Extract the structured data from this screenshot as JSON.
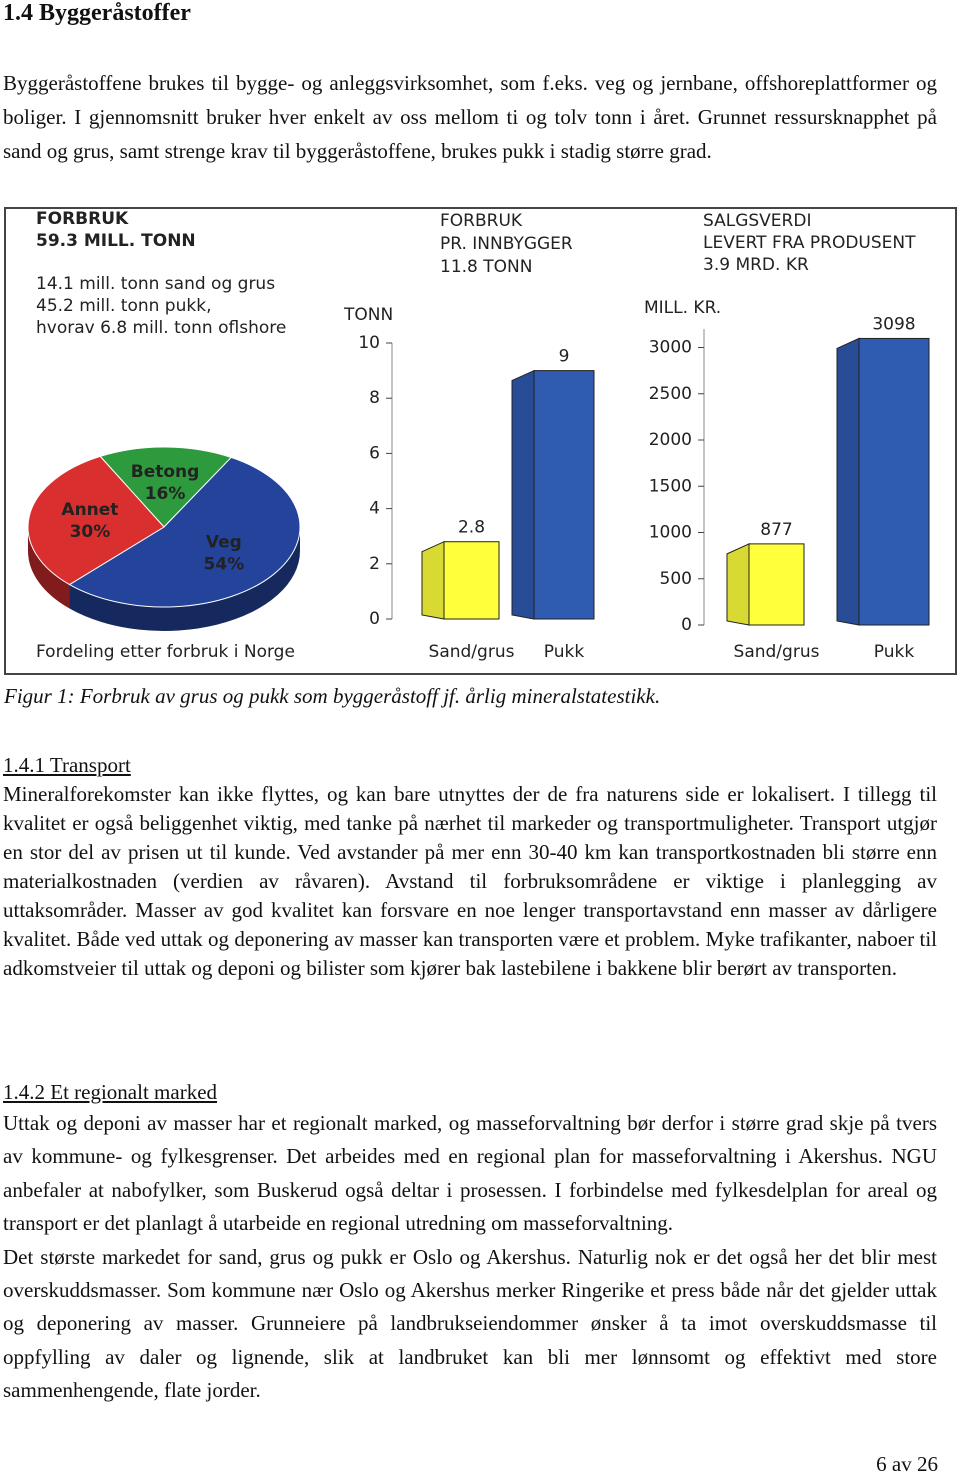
{
  "heading": "1.4 Byggeråstoffer",
  "intro": "Byggeråstoffene brukes til bygge- og anleggsvirksomhet, som f.eks. veg og jernbane, offshoreplattformer og boliger. I gjennomsnitt bruker hver enkelt av oss mellom ti og tolv tonn i året. Grunnet ressursknapphet på sand og grus, samt strenge krav til byggeråstoffene, brukes pukk i stadig større grad.",
  "chart_data": [
    {
      "type": "pie",
      "title": [
        "FORBRUK",
        "59.3 MILL. TONN"
      ],
      "notes": [
        "14.1 mill. tonn sand og grus",
        "45.2 mill. tonn pukk,",
        "hvorav 6.8 mill. tonn oflshore"
      ],
      "categories": [
        "Betong",
        "Veg",
        "Annet"
      ],
      "values": [
        16,
        54,
        30
      ],
      "value_labels": [
        "16%",
        "54%",
        "30%"
      ],
      "colors": [
        "#2e9a3e",
        "#24449c",
        "#d92f2f"
      ],
      "xlabel": "Fordeling etter forbruk i Norge"
    },
    {
      "type": "bar",
      "title": [
        "FORBRUK",
        "PR. INNBYGGER",
        "11.8 TONN"
      ],
      "ylabel": "TONN",
      "categories": [
        "Sand/grus",
        "Pukk"
      ],
      "values": [
        2.8,
        9
      ],
      "colors": [
        "#ffff3c",
        "#2f5bb0"
      ],
      "ylim": [
        0,
        10
      ],
      "yticks": [
        0,
        2,
        4,
        6,
        8,
        10
      ]
    },
    {
      "type": "bar",
      "title": [
        "SALGSVERDI",
        "LEVERT FRA PRODUSENT",
        "3.9 MRD. KR"
      ],
      "ylabel": "MILL. KR.",
      "categories": [
        "Sand/grus",
        "Pukk"
      ],
      "values": [
        877,
        3098
      ],
      "colors": [
        "#ffff3c",
        "#2f5bb0"
      ],
      "ylim": [
        0,
        3200
      ],
      "yticks": [
        0,
        500,
        1000,
        1500,
        2000,
        2500,
        3000
      ]
    }
  ],
  "caption": "Figur 1: Forbruk av grus og pukk som byggeråstoff jf. årlig mineralstatestikk.",
  "sections": [
    {
      "title": "1.4.1 Transport",
      "paragraphs": [
        "Mineralforekomster kan ikke flyttes, og kan bare utnyttes der de fra naturens side er lokalisert. I tillegg til kvalitet er også beliggenhet viktig, med tanke på nærhet til markeder og transportmuligheter. Transport utgjør en stor del av prisen ut til kunde. Ved avstander på mer enn 30-40 km kan transportkostnaden bli større enn materialkostnaden (verdien av råvaren). Avstand til forbruksområdene er viktige i planlegging av uttaksområder. Masser av god kvalitet kan forsvare en noe lenger transportavstand enn masser av dårligere kvalitet. Både ved uttak og deponering av masser kan transporten være et problem. Myke trafikanter, naboer til adkomstveier til uttak og deponi og bilister som kjører bak lastebilene i bakkene blir berørt av transporten."
      ]
    },
    {
      "title": "1.4.2 Et regionalt marked",
      "paragraphs": [
        "Uttak og deponi av masser har et regionalt marked, og masseforvaltning bør derfor i større grad skje på tvers av kommune- og fylkesgrenser. Det arbeides med en regional plan for masseforvaltning i Akershus. NGU anbefaler at nabofylker, som Buskerud også deltar i prosessen. I forbindelse med fylkesdelplan for areal og transport er det planlagt å utarbeide en regional utredning om masseforvaltning.",
        "Det største markedet for sand, grus og pukk er Oslo og Akershus. Naturlig nok er det også her det blir mest overskuddsmasser. Som kommune nær Oslo og Akershus merker Ringerike et press både når det gjelder uttak og deponering av masser. Grunneiere på landbrukseiendommer ønsker å ta imot overskuddsmasse til oppfylling av daler og lignende, slik at landbruket kan bli mer lønnsomt og effektivt med store sammenhengende, flate jorder."
      ]
    }
  ],
  "page_number": "6 av 26"
}
